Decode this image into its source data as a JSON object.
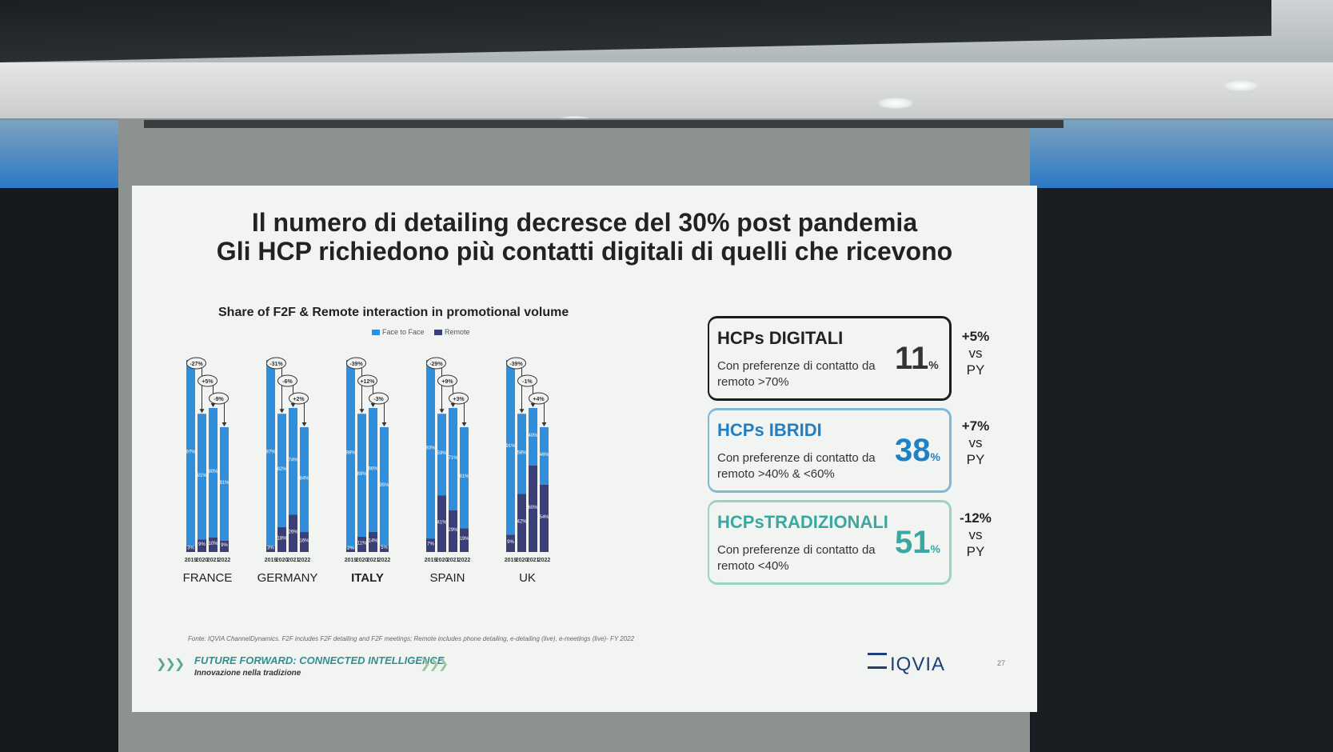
{
  "slide": {
    "title_line1": "Il numero di detailing decresce del 30% post pandemia",
    "title_line2": "Gli HCP richiedono più contatti digitali di quelli che ricevono",
    "footer_brand": "FUTURE FORWARD: CONNECTED INTELLIGENCE",
    "footer_sub": "Innovazione nella tradizione",
    "logo_text": "IQVIA",
    "page_number": "27",
    "source_note": "Fonte: IQVIA ChannelDynamics. F2F includes F2F detailing and F2F meetings; Remote includes phone detailing, e-detailing (live), e-meetings (live)- FY 2022"
  },
  "chart_data": {
    "type": "bar",
    "title": "Share of F2F & Remote interaction in promotional volume",
    "legend": [
      "Face to Face",
      "Remote"
    ],
    "colors": {
      "face_to_face": "#2f8fdc",
      "remote": "#3a3f7a"
    },
    "years": [
      "2019",
      "2020",
      "2021",
      "2022"
    ],
    "countries": [
      {
        "name": "FRANCE",
        "face_to_face": [
          97,
          91,
          90,
          91
        ],
        "remote": [
          3,
          9,
          10,
          9
        ],
        "changes": [
          "-27%",
          "+5%",
          "-9%"
        ]
      },
      {
        "name": "GERMANY",
        "face_to_face": [
          97,
          82,
          74,
          84
        ],
        "remote": [
          3,
          18,
          26,
          16
        ],
        "changes": [
          "-31%",
          "-6%",
          "+2%"
        ]
      },
      {
        "name": "ITALY",
        "face_to_face": [
          98,
          89,
          86,
          95
        ],
        "remote": [
          2,
          11,
          14,
          5
        ],
        "changes": [
          "-39%",
          "+12%",
          "-3%"
        ]
      },
      {
        "name": "SPAIN",
        "face_to_face": [
          93,
          59,
          71,
          81
        ],
        "remote": [
          7,
          41,
          29,
          19
        ],
        "changes": [
          "-29%",
          "+9%",
          "+3%"
        ]
      },
      {
        "name": "UK",
        "face_to_face": [
          91,
          58,
          40,
          46
        ],
        "remote": [
          9,
          42,
          60,
          54
        ],
        "changes": [
          "-39%",
          "-1%",
          "+4%"
        ]
      }
    ]
  },
  "kpis": [
    {
      "title": "HCPs DIGITALI",
      "desc": "Con preferenze di contatto da remoto >70%",
      "pct": "11",
      "delta": "+5%",
      "vs": "vs",
      "py": "PY"
    },
    {
      "title": "HCPs IBRIDI",
      "desc": "Con preferenze di contatto da remoto >40% & <60%",
      "pct": "38",
      "delta": "+7%",
      "vs": "vs",
      "py": "PY"
    },
    {
      "title": "HCPsTRADIZIONALI",
      "desc": "Con preferenze di contatto da remoto <40%",
      "pct": "51",
      "delta": "-12%",
      "vs": "vs",
      "py": "PY"
    }
  ]
}
